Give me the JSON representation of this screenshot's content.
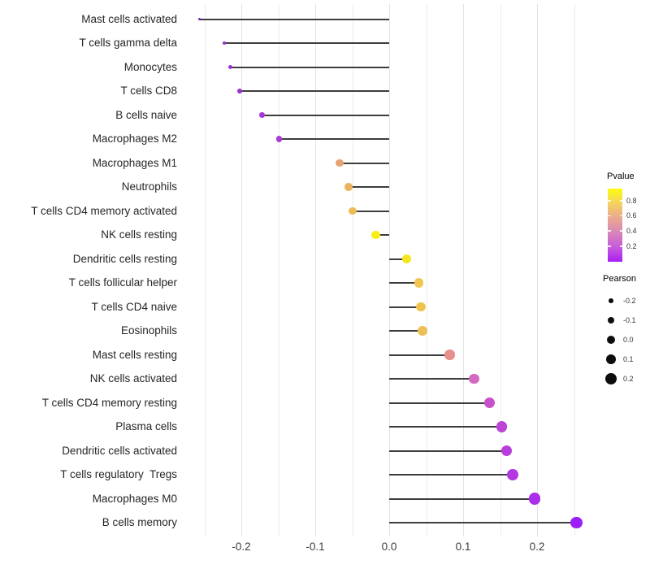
{
  "chart_data": {
    "type": "scatter",
    "variant": "lollipop",
    "title": "",
    "xlabel": "",
    "ylabel": "",
    "categories": [
      "Mast cells activated",
      "T cells gamma delta",
      "Monocytes",
      "T cells CD8",
      "B cells naive",
      "Macrophages M2",
      "Macrophages M1",
      "Neutrophils",
      "T cells CD4 memory activated",
      "NK cells resting",
      "Dendritic cells resting",
      "T cells follicular helper",
      "T cells CD4 naive",
      "Eosinophils",
      "Mast cells resting",
      "NK cells activated",
      "T cells CD4 memory resting",
      "Plasma cells",
      "Dendritic cells activated",
      "T cells regulatory  Tregs",
      "Macrophages M0",
      "B cells memory"
    ],
    "series": [
      {
        "name": "Pearson",
        "values": [
          -0.257,
          -0.223,
          -0.215,
          -0.202,
          -0.172,
          -0.149,
          -0.067,
          -0.055,
          -0.049,
          -0.018,
          0.024,
          0.04,
          0.043,
          0.045,
          0.082,
          0.115,
          0.136,
          0.152,
          0.159,
          0.167,
          0.197,
          0.253
        ]
      }
    ],
    "point_colors_by_pvalue": [
      "#8324B2",
      "#9530CF",
      "#9A33D4",
      "#9C31D2",
      "#A437D9",
      "#AA3BD6",
      "#E6A272",
      "#ECB25F",
      "#EDBC59",
      "#F8ED15",
      "#F6E620",
      "#F0C551",
      "#F0C34F",
      "#EDC056",
      "#E78F8D",
      "#D269C0",
      "#C851CB",
      "#BD45D6",
      "#B83EDB",
      "#B338E2",
      "#AA2CEC",
      "#9C20F6"
    ],
    "segment_color": "#3d3d3d",
    "baseline_value": 0,
    "xlim": [
      -0.27,
      0.265
    ],
    "x_ticks": [
      {
        "value": -0.2,
        "label": "-0.2"
      },
      {
        "value": -0.1,
        "label": "-0.1"
      },
      {
        "value": 0.0,
        "label": "0.0"
      },
      {
        "value": 0.1,
        "label": "0.1"
      },
      {
        "value": 0.2,
        "label": "0.2"
      }
    ],
    "gridlines": [
      {
        "value": -0.25,
        "major": false
      },
      {
        "value": -0.2,
        "major": true
      },
      {
        "value": -0.15,
        "major": false
      },
      {
        "value": -0.1,
        "major": true
      },
      {
        "value": -0.05,
        "major": false
      },
      {
        "value": 0.0,
        "major": true
      },
      {
        "value": 0.05,
        "major": false
      },
      {
        "value": 0.1,
        "major": true
      },
      {
        "value": 0.15,
        "major": false
      },
      {
        "value": 0.2,
        "major": true
      },
      {
        "value": 0.25,
        "major": false
      }
    ],
    "grid": "vertical-only",
    "legend_position": "right"
  },
  "legend": {
    "pvalue": {
      "title": "Pvalue",
      "gradient_top_to_bottom": [
        "#FCFC10",
        "#F5D35F",
        "#E9A98F",
        "#D986BA",
        "#C65CDB",
        "#A81FF2"
      ],
      "ticks": [
        {
          "label": "0.8",
          "frac_from_top": 0.167
        },
        {
          "label": "0.6",
          "frac_from_top": 0.372
        },
        {
          "label": "0.4",
          "frac_from_top": 0.578
        },
        {
          "label": "0.2",
          "frac_from_top": 0.789
        }
      ]
    },
    "pearson": {
      "title": "Pearson",
      "dot_color": "#0d0d0d",
      "items": [
        {
          "label": "-0.2",
          "value": -0.2
        },
        {
          "label": "-0.1",
          "value": -0.1
        },
        {
          "label": "0.0",
          "value": 0.0
        },
        {
          "label": "0.1",
          "value": 0.1
        },
        {
          "label": "0.2",
          "value": 0.2
        }
      ]
    }
  }
}
